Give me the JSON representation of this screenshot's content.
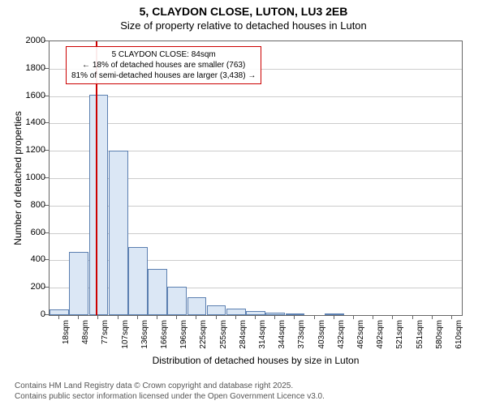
{
  "title": "5, CLAYDON CLOSE, LUTON, LU3 2EB",
  "subtitle": "Size of property relative to detached houses in Luton",
  "ylabel": "Number of detached properties",
  "xlabel": "Distribution of detached houses by size in Luton",
  "chart": {
    "type": "histogram",
    "ylim": [
      0,
      2000
    ],
    "ytick_step": 200,
    "bar_color": "#dbe7f5",
    "bar_border": "#5b7fb0",
    "grid_color": "#cccccc",
    "background_color": "#ffffff",
    "marker_color": "#cc0000",
    "marker_position_sqm": 84,
    "xtick_labels": [
      "18sqm",
      "48sqm",
      "77sqm",
      "107sqm",
      "136sqm",
      "166sqm",
      "196sqm",
      "225sqm",
      "255sqm",
      "284sqm",
      "314sqm",
      "344sqm",
      "373sqm",
      "403sqm",
      "432sqm",
      "462sqm",
      "492sqm",
      "521sqm",
      "551sqm",
      "580sqm",
      "610sqm"
    ],
    "values": [
      40,
      460,
      1610,
      1200,
      500,
      340,
      210,
      130,
      70,
      50,
      30,
      20,
      10,
      0,
      5,
      0,
      0,
      0,
      0,
      0,
      0
    ]
  },
  "annotation": {
    "line1": "5 CLAYDON CLOSE: 84sqm",
    "line2": "← 18% of detached houses are smaller (763)",
    "line3": "81% of semi-detached houses are larger (3,438) →"
  },
  "footer": {
    "line1": "Contains HM Land Registry data © Crown copyright and database right 2025.",
    "line2": "Contains public sector information licensed under the Open Government Licence v3.0."
  }
}
